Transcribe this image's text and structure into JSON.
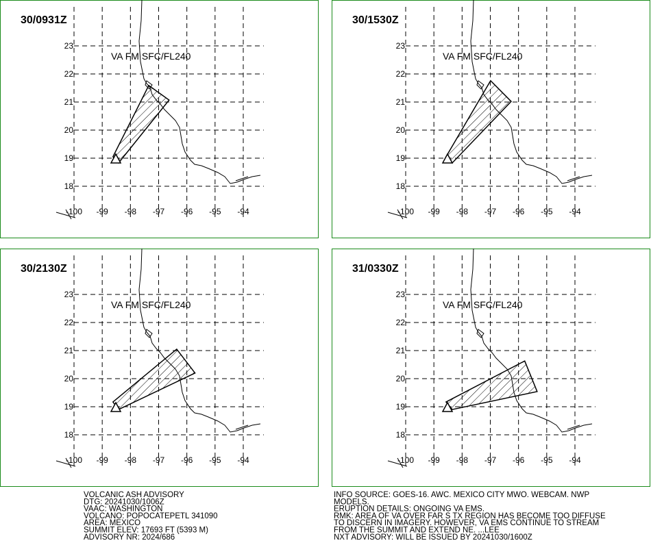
{
  "map": {
    "xticks": [
      -100,
      -99,
      -98,
      -97,
      -96,
      -95,
      -94
    ],
    "yticks": [
      18,
      19,
      20,
      21,
      22,
      23
    ]
  },
  "panels": [
    {
      "time": "30/0931Z",
      "layer": "VA FM SFC/FL240",
      "polygon": {
        "lon": [
          -98.62,
          -97.35,
          -96.63,
          -98.42
        ],
        "lat": [
          19.05,
          21.59,
          21.07,
          18.83
        ]
      }
    },
    {
      "time": "30/1530Z",
      "layer": "VA FM SFC/FL240",
      "polygon": {
        "lon": [
          -98.57,
          -96.99,
          -96.26,
          -98.35
        ],
        "lat": [
          19.05,
          21.76,
          21.02,
          18.83
        ]
      }
    },
    {
      "time": "30/2130Z",
      "layer": "VA FM SFC/FL240",
      "polygon": {
        "lon": [
          -98.62,
          -96.36,
          -95.71,
          -98.42
        ],
        "lat": [
          19.17,
          21.05,
          20.2,
          18.9
        ]
      }
    },
    {
      "time": "31/0330Z",
      "layer": "VA FM SFC/FL240",
      "polygon": {
        "lon": [
          -98.57,
          -95.78,
          -95.34,
          -98.35
        ],
        "lat": [
          19.17,
          20.63,
          19.54,
          18.9
        ]
      }
    }
  ],
  "advisory": {
    "left": [
      "VOLCANIC ASH ADVISORY",
      "DTG: 20241030/1006Z",
      "VAAC: WASHINGTON",
      "VOLCANO: POPOCATEPETL 341090",
      "AREA: MEXICO",
      "SUMMIT ELEV: 17693 FT (5393 M)",
      "ADVISORY NR: 2024/686"
    ],
    "right": [
      "INFO SOURCE: GOES-16. AWC. MEXICO CITY MWO. WEBCAM. NWP",
      "MODELS.",
      "ERUPTION DETAILS: ONGOING VA EMS.",
      "RMK: AREA OF VA OVER FAR S TX REGION HAS BECOME TOO DIFFUSE",
      "TO DISCERN IN IMAGERY. HOWEVER, VA EMS CONTINUE TO STREAM",
      "FROM THE SUMMIT AND EXTEND NE. ...LEE",
      "NXT ADVISORY: WILL BE ISSUED BY 20241030/1600Z"
    ]
  }
}
